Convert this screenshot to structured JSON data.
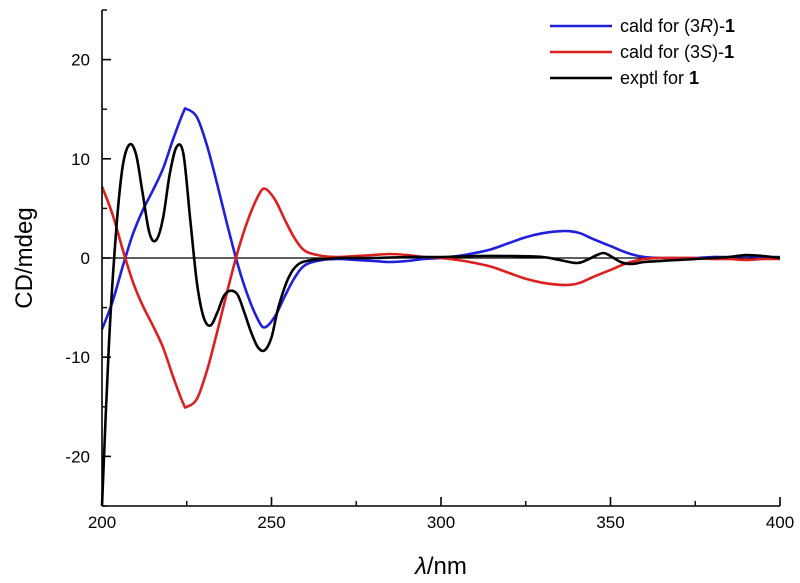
{
  "chart_data": {
    "type": "line",
    "title": "",
    "xlabel_symbol": "λ",
    "xlabel_unit": "/nm",
    "ylabel": "CD/mdeg",
    "xlim": [
      200,
      400
    ],
    "ylim": [
      -25,
      25
    ],
    "x_ticks": [
      200,
      250,
      300,
      350,
      400
    ],
    "y_ticks": [
      -20,
      -10,
      0,
      10,
      20
    ],
    "zero_line": true,
    "legend_position": "top-right",
    "series": [
      {
        "name": "cald for (3R)-1",
        "legend": {
          "pre": "cald for (3",
          "ital": "R",
          "mid": ")-",
          "bold": "1"
        },
        "color": "#1f1fdc",
        "x": [
          200,
          203,
          206,
          209,
          212,
          215,
          218,
          221,
          224,
          225,
          228,
          231,
          234,
          237,
          240,
          243,
          246,
          248,
          251,
          254,
          257,
          260,
          265,
          270,
          275,
          280,
          285,
          290,
          295,
          300,
          305,
          310,
          315,
          320,
          325,
          330,
          335,
          338,
          341,
          345,
          350,
          355,
          360,
          365,
          370,
          375,
          380,
          385,
          390,
          395,
          400
        ],
        "y": [
          -7.2,
          -4.5,
          -1.0,
          2.3,
          4.8,
          6.8,
          9.0,
          12.0,
          14.7,
          15.0,
          14.2,
          11.3,
          7.4,
          3.3,
          -0.6,
          -3.8,
          -6.2,
          -7.0,
          -5.9,
          -3.8,
          -1.9,
          -0.7,
          -0.2,
          -0.1,
          -0.2,
          -0.3,
          -0.4,
          -0.3,
          -0.1,
          0.0,
          0.2,
          0.5,
          0.9,
          1.5,
          2.1,
          2.5,
          2.7,
          2.7,
          2.5,
          1.9,
          1.2,
          0.5,
          0.1,
          0.0,
          0.0,
          0.0,
          0.1,
          0.1,
          0.2,
          0.1,
          0.1
        ]
      },
      {
        "name": "cald for (3S)-1",
        "legend": {
          "pre": "cald for (3",
          "ital": "S",
          "mid": ")-",
          "bold": "1"
        },
        "color": "#dc1f1f",
        "x": [
          200,
          203,
          206,
          209,
          212,
          215,
          218,
          221,
          224,
          225,
          228,
          231,
          234,
          237,
          240,
          243,
          246,
          248,
          251,
          254,
          257,
          260,
          265,
          270,
          275,
          280,
          285,
          290,
          295,
          300,
          305,
          310,
          315,
          320,
          325,
          330,
          335,
          338,
          341,
          345,
          350,
          355,
          360,
          365,
          370,
          375,
          380,
          385,
          390,
          395,
          400
        ],
        "y": [
          7.2,
          4.5,
          1.0,
          -2.3,
          -4.8,
          -6.8,
          -9.0,
          -12.0,
          -14.7,
          -15.0,
          -14.2,
          -11.3,
          -7.4,
          -3.3,
          0.6,
          3.8,
          6.2,
          7.0,
          5.9,
          3.8,
          1.9,
          0.7,
          0.2,
          0.1,
          0.2,
          0.3,
          0.4,
          0.3,
          0.1,
          0.0,
          -0.2,
          -0.5,
          -0.9,
          -1.5,
          -2.1,
          -2.5,
          -2.7,
          -2.7,
          -2.5,
          -1.9,
          -1.2,
          -0.5,
          -0.1,
          0.0,
          0.0,
          0.0,
          -0.1,
          -0.1,
          -0.2,
          -0.1,
          -0.1
        ]
      },
      {
        "name": "exptl for 1",
        "legend": {
          "pre": "exptl for ",
          "ital": "",
          "mid": "",
          "bold": "1"
        },
        "color": "#000000",
        "x": [
          200,
          202,
          204,
          206,
          208,
          210,
          212,
          214,
          216,
          218,
          220,
          222,
          224,
          226,
          228,
          230,
          232,
          234,
          236,
          238,
          240,
          242,
          244,
          246,
          248,
          250,
          252,
          255,
          258,
          262,
          266,
          270,
          280,
          290,
          300,
          310,
          320,
          330,
          335,
          340,
          343,
          346,
          348,
          350,
          353,
          356,
          360,
          365,
          370,
          375,
          380,
          385,
          390,
          395,
          400
        ],
        "y": [
          -25.0,
          -9.0,
          2.0,
          9.0,
          11.4,
          10.5,
          6.5,
          2.5,
          1.8,
          4.0,
          8.5,
          11.2,
          10.5,
          4.0,
          -2.5,
          -6.0,
          -6.8,
          -5.5,
          -3.8,
          -3.3,
          -3.7,
          -5.5,
          -7.5,
          -9.0,
          -9.3,
          -8.0,
          -5.0,
          -2.0,
          -0.6,
          -0.2,
          -0.1,
          0.0,
          0.0,
          0.1,
          0.1,
          0.2,
          0.2,
          0.1,
          -0.2,
          -0.5,
          -0.2,
          0.3,
          0.5,
          0.2,
          -0.4,
          -0.6,
          -0.4,
          -0.3,
          -0.2,
          -0.1,
          0.0,
          0.1,
          0.3,
          0.2,
          0.0
        ]
      }
    ]
  }
}
